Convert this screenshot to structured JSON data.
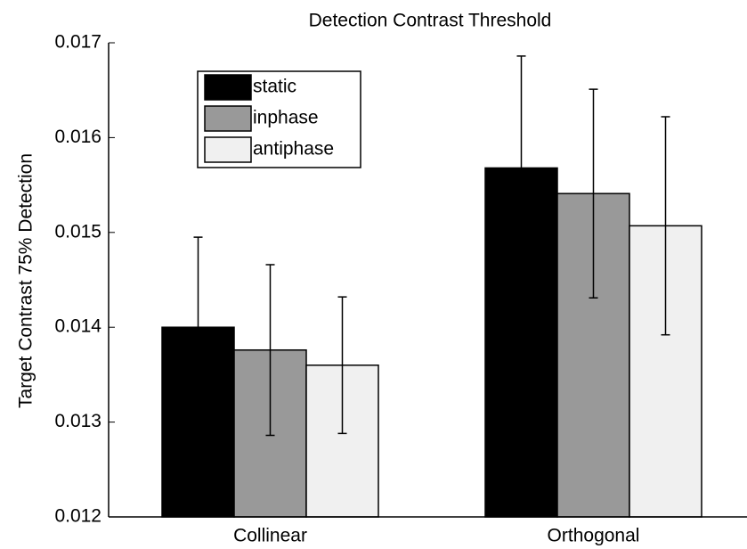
{
  "chart_data": {
    "type": "bar",
    "title": "Detection Contrast Threshold",
    "ylabel": "Target Contrast 75% Detection",
    "categories": [
      "Collinear",
      "Orthogonal"
    ],
    "series": [
      {
        "name": "static",
        "color": "#000000",
        "values": [
          0.014,
          0.01568
        ],
        "errors": [
          0.00095,
          0.00118
        ]
      },
      {
        "name": "inphase",
        "color": "#999999",
        "values": [
          0.01376,
          0.01541
        ],
        "errors": [
          0.0009,
          0.0011
        ]
      },
      {
        "name": "antiphase",
        "color": "#f0f0f0",
        "values": [
          0.0136,
          0.01507
        ],
        "errors": [
          0.00072,
          0.00115
        ]
      }
    ],
    "ylim": [
      0.012,
      0.017
    ],
    "yticks": [
      0.012,
      0.013,
      0.014,
      0.015,
      0.016,
      0.017
    ],
    "legend": "upper left"
  }
}
